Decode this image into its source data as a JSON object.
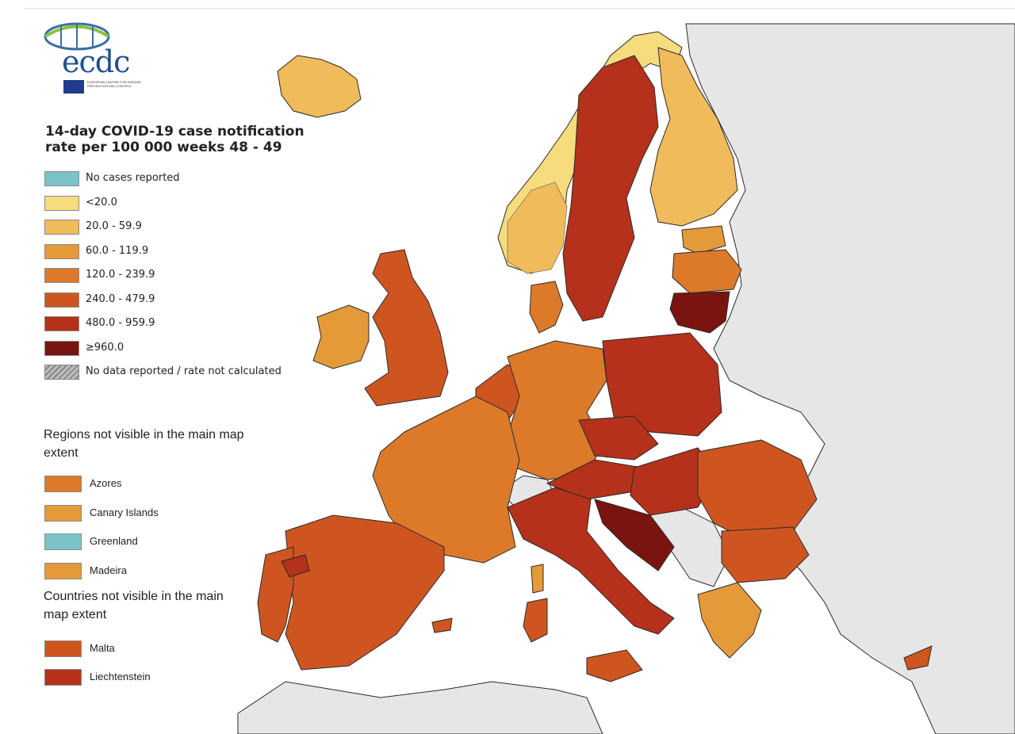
{
  "map": {
    "title": "14-day COVID-19 case notification rate per 100 000 weeks 48 - 49",
    "logo": {
      "text": "ecdc",
      "subtitle": "EUROPEAN CENTRE FOR DISEASE PREVENTION AND CONTROL"
    },
    "legend": [
      {
        "label": "No cases reported",
        "color": "#7cc3c9"
      },
      {
        "label": "<20.0",
        "color": "#f6dc7d"
      },
      {
        "label": "20.0 - 59.9",
        "color": "#f0bb5b"
      },
      {
        "label": "60.0 - 119.9",
        "color": "#e59a3a"
      },
      {
        "label": "120.0 - 239.9",
        "color": "#dc7a2a"
      },
      {
        "label": "240.0 - 479.9",
        "color": "#cf5520"
      },
      {
        "label": "480.0 - 959.9",
        "color": "#b5311b"
      },
      {
        "label": "≥960.0",
        "color": "#7a1410"
      },
      {
        "label": "No data reported / rate not calculated",
        "color": "hatched-grey"
      }
    ],
    "regions_heading": "Regions not visible in the main map extent",
    "regions": [
      {
        "label": "Azores",
        "color": "#dc7a2a"
      },
      {
        "label": "Canary Islands",
        "color": "#e59a3a"
      },
      {
        "label": "Greenland",
        "color": "#7cc3c9"
      },
      {
        "label": "Madeira",
        "color": "#e59a3a"
      }
    ],
    "countries_heading": "Countries not visible in the main map extent",
    "countries": [
      {
        "label": "Malta",
        "color": "#cf5520"
      },
      {
        "label": "Liechtenstein",
        "color": "#b5311b"
      }
    ],
    "colors": {
      "sea": "#ffffff",
      "non_eu_land": "#e6e6e6",
      "border": "#2a2a2a"
    }
  }
}
